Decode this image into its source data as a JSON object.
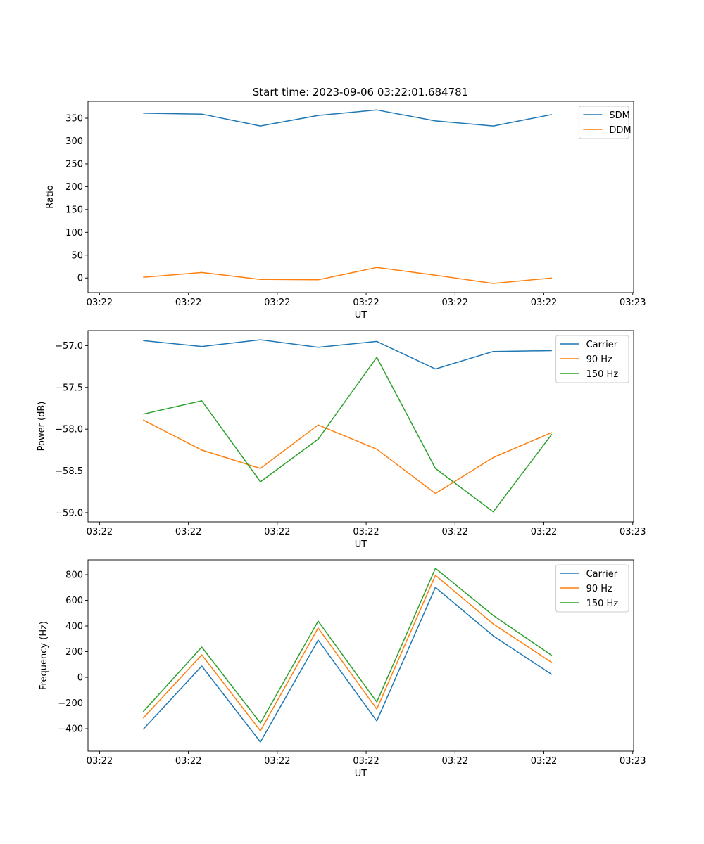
{
  "title": "Start time: 2023-09-06 03:22:01.684781",
  "colors": {
    "c0": "#1f77b4",
    "c1": "#ff7f0e",
    "c2": "#2ca02c"
  },
  "chart_data": [
    {
      "type": "line",
      "title": "Start time: 2023-09-06 03:22:01.684781",
      "xlabel": "UT",
      "ylabel": "Ratio",
      "x": [
        4.9,
        11.5,
        18.1,
        24.6,
        31.2,
        37.8,
        44.3,
        50.9
      ],
      "xlim": [
        -1.3,
        60.1
      ],
      "xticks": [
        0,
        10,
        20,
        30,
        40,
        50,
        60
      ],
      "xtick_labels": [
        "03:22",
        "03:22",
        "03:22",
        "03:22",
        "03:22",
        "03:22",
        "03:23"
      ],
      "ylim": [
        -32,
        387
      ],
      "yticks": [
        0,
        50,
        100,
        150,
        200,
        250,
        300,
        350
      ],
      "ytick_labels": [
        "0",
        "50",
        "100",
        "150",
        "200",
        "250",
        "300",
        "350"
      ],
      "legend": "top-right",
      "series": [
        {
          "name": "SDM",
          "color": "#1f77b4",
          "values": [
            361,
            359,
            333,
            356,
            368,
            344,
            333,
            358
          ]
        },
        {
          "name": "DDM",
          "color": "#ff7f0e",
          "values": [
            1.5,
            12,
            -3,
            -4,
            23,
            6,
            -12,
            0
          ]
        }
      ]
    },
    {
      "type": "line",
      "xlabel": "UT",
      "ylabel": "Power (dB)",
      "x": [
        4.9,
        11.5,
        18.1,
        24.6,
        31.2,
        37.8,
        44.3,
        50.9
      ],
      "xlim": [
        -1.3,
        60.1
      ],
      "xticks": [
        0,
        10,
        20,
        30,
        40,
        50,
        60
      ],
      "xtick_labels": [
        "03:22",
        "03:22",
        "03:22",
        "03:22",
        "03:22",
        "03:22",
        "03:23"
      ],
      "ylim": [
        -59.11,
        -56.82
      ],
      "yticks": [
        -59.0,
        -58.5,
        -58.0,
        -57.5,
        -57.0
      ],
      "ytick_labels": [
        "−59.0",
        "−58.5",
        "−58.0",
        "−57.5",
        "−57.0"
      ],
      "legend": "top-right",
      "series": [
        {
          "name": "Carrier",
          "color": "#1f77b4",
          "values": [
            -56.94,
            -57.01,
            -56.93,
            -57.02,
            -56.95,
            -57.28,
            -57.07,
            -57.06
          ]
        },
        {
          "name": "90 Hz",
          "color": "#ff7f0e",
          "values": [
            -57.89,
            -58.25,
            -58.47,
            -57.95,
            -58.24,
            -58.77,
            -58.34,
            -58.04
          ]
        },
        {
          "name": "150 Hz",
          "color": "#2ca02c",
          "values": [
            -57.82,
            -57.66,
            -58.63,
            -58.12,
            -57.14,
            -58.47,
            -58.99,
            -58.06
          ]
        }
      ]
    },
    {
      "type": "line",
      "xlabel": "UT",
      "ylabel": "Frequency (Hz)",
      "x": [
        4.9,
        11.5,
        18.1,
        24.6,
        31.2,
        37.8,
        44.3,
        50.9
      ],
      "xlim": [
        -1.3,
        60.1
      ],
      "xticks": [
        0,
        10,
        20,
        30,
        40,
        50,
        60
      ],
      "xtick_labels": [
        "03:22",
        "03:22",
        "03:22",
        "03:22",
        "03:22",
        "03:22",
        "03:23"
      ],
      "ylim": [
        -575,
        915
      ],
      "yticks": [
        -400,
        -200,
        0,
        200,
        400,
        600,
        800
      ],
      "ytick_labels": [
        "−400",
        "−200",
        "0",
        "200",
        "400",
        "600",
        "800"
      ],
      "legend": "top-right",
      "series": [
        {
          "name": "Carrier",
          "color": "#1f77b4",
          "values": [
            -405,
            88,
            -504,
            290,
            -340,
            701,
            323,
            22
          ]
        },
        {
          "name": "90 Hz",
          "color": "#ff7f0e",
          "values": [
            -318,
            175,
            -416,
            384,
            -247,
            795,
            416,
            115
          ]
        },
        {
          "name": "150 Hz",
          "color": "#2ca02c",
          "values": [
            -268,
            236,
            -356,
            438,
            -192,
            849,
            482,
            170
          ]
        }
      ]
    }
  ]
}
